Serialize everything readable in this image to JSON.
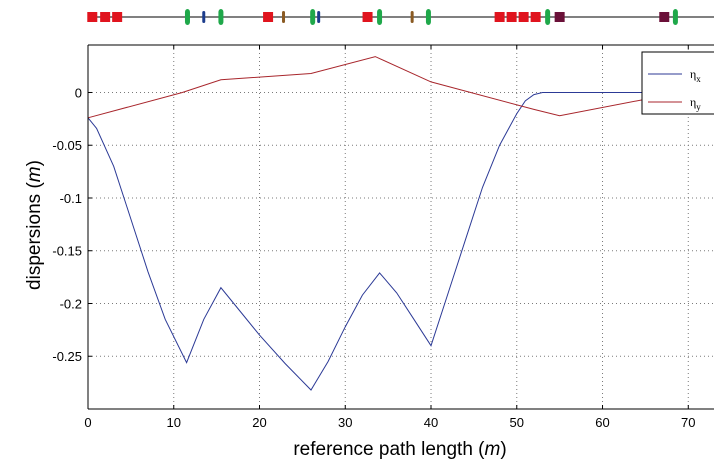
{
  "chart_data": {
    "type": "line",
    "xlabel": "reference path length",
    "xlabel_unit": "m",
    "ylabel": "dispersions",
    "ylabel_unit": "m",
    "xlim": [
      0,
      73
    ],
    "ylim": [
      -0.3,
      0.045
    ],
    "x_ticks": [
      0,
      10,
      20,
      30,
      40,
      50,
      60,
      70
    ],
    "y_ticks": [
      0,
      -0.05,
      -0.1,
      -0.15,
      -0.2,
      -0.25
    ],
    "x_tick_labels": [
      "0",
      "10",
      "20",
      "30",
      "40",
      "50",
      "60",
      "70"
    ],
    "y_tick_labels": [
      "0",
      "-0.05",
      "-0.1",
      "-0.15",
      "-0.2",
      "-0.25"
    ],
    "grid": true,
    "legend_position": "top-right",
    "series": [
      {
        "name": "η",
        "subscript": "x",
        "color": "#2c3a96",
        "x": [
          0,
          1,
          3,
          5,
          7,
          9,
          11.5,
          13.5,
          15.5,
          17,
          20,
          23,
          26,
          28,
          30,
          32,
          34,
          36,
          38,
          40,
          42,
          44,
          46,
          48,
          50,
          51,
          52,
          53,
          60,
          73
        ],
        "y": [
          -0.024,
          -0.034,
          -0.07,
          -0.12,
          -0.17,
          -0.215,
          -0.256,
          -0.215,
          -0.185,
          -0.2,
          -0.23,
          -0.257,
          -0.282,
          -0.255,
          -0.222,
          -0.192,
          -0.171,
          -0.19,
          -0.215,
          -0.24,
          -0.19,
          -0.14,
          -0.09,
          -0.05,
          -0.02,
          -0.008,
          -0.002,
          0,
          0,
          0
        ]
      },
      {
        "name": "η",
        "subscript": "y",
        "color": "#a8262c",
        "x": [
          0,
          11,
          15.5,
          26,
          33.5,
          40,
          52,
          55,
          73
        ],
        "y": [
          -0.024,
          -0.0,
          0.012,
          0.018,
          0.034,
          0.01,
          -0.016,
          -0.022,
          0.006
        ]
      }
    ]
  },
  "beamline": {
    "elements": [
      {
        "x": 0.5,
        "kind": "dipole"
      },
      {
        "x": 2.0,
        "kind": "dipole"
      },
      {
        "x": 3.4,
        "kind": "dipole"
      },
      {
        "x": 11.6,
        "kind": "quad"
      },
      {
        "x": 13.5,
        "kind": "corrector"
      },
      {
        "x": 15.5,
        "kind": "quad"
      },
      {
        "x": 21.0,
        "kind": "dipole"
      },
      {
        "x": 22.8,
        "kind": "sextupole"
      },
      {
        "x": 26.2,
        "kind": "quad"
      },
      {
        "x": 26.9,
        "kind": "corrector"
      },
      {
        "x": 32.6,
        "kind": "dipole"
      },
      {
        "x": 34.0,
        "kind": "quad"
      },
      {
        "x": 37.8,
        "kind": "sextupole"
      },
      {
        "x": 39.7,
        "kind": "quad"
      },
      {
        "x": 48.0,
        "kind": "dipole"
      },
      {
        "x": 49.4,
        "kind": "dipole"
      },
      {
        "x": 50.8,
        "kind": "dipole"
      },
      {
        "x": 52.2,
        "kind": "dipole"
      },
      {
        "x": 53.6,
        "kind": "quad"
      },
      {
        "x": 55.0,
        "kind": "kicker"
      },
      {
        "x": 67.2,
        "kind": "kicker"
      },
      {
        "x": 68.5,
        "kind": "quad"
      }
    ],
    "colors": {
      "dipole": "#e0141e",
      "quad": "#1fa84a",
      "corrector": "#1c3c8c",
      "sextupole": "#8a5a22",
      "kicker": "#6a1038"
    }
  }
}
